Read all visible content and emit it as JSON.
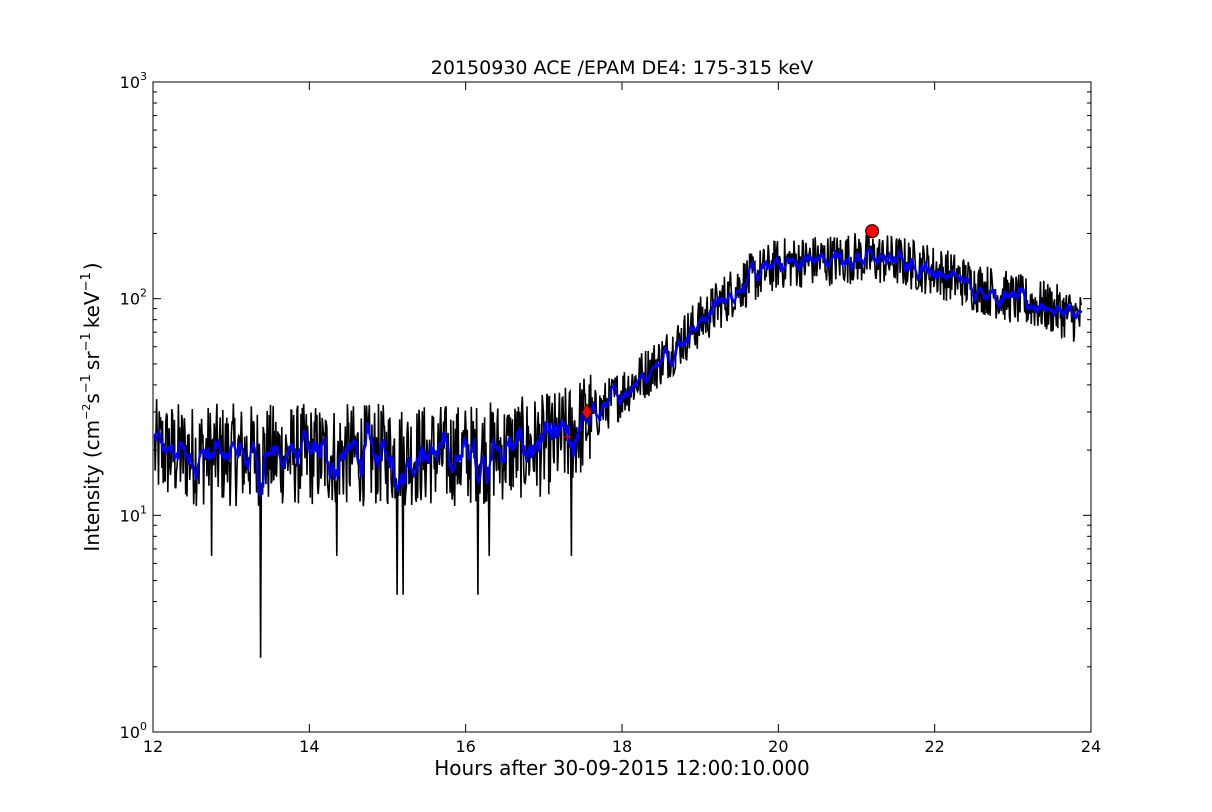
{
  "chart_data": {
    "type": "line",
    "title": "20150930 ACE /EPAM DE4: 175-315 keV",
    "xlabel": "Hours after 30-09-2015 12:00:10.000",
    "ylabel_parts": {
      "prefix": "Intensity (cm",
      "exp1": "−2",
      "s": "s",
      "exp2": "−1",
      "sr": "sr",
      "exp3": "−1",
      "kev": "keV",
      "exp4": "−1",
      "suffix": ")"
    },
    "xlim": [
      12,
      24
    ],
    "ylim": [
      1,
      1000
    ],
    "yscale": "log",
    "grid": false,
    "x_ticks": [
      {
        "value": 12,
        "label": "12"
      },
      {
        "value": 14,
        "label": "14"
      },
      {
        "value": 16,
        "label": "16"
      },
      {
        "value": 18,
        "label": "18"
      },
      {
        "value": 20,
        "label": "20"
      },
      {
        "value": 22,
        "label": "22"
      },
      {
        "value": 24,
        "label": "24"
      }
    ],
    "y_ticks": [
      {
        "value": 1,
        "base": "10",
        "exp": "0"
      },
      {
        "value": 10,
        "base": "10",
        "exp": "1"
      },
      {
        "value": 100,
        "base": "10",
        "exp": "2"
      },
      {
        "value": 1000,
        "base": "10",
        "exp": "3"
      }
    ],
    "series": [
      {
        "color": "#000000",
        "description_points": [
          [
            12.0,
            20
          ],
          [
            12.5,
            19
          ],
          [
            13.0,
            19
          ],
          [
            13.5,
            19
          ],
          [
            14.0,
            19
          ],
          [
            14.5,
            19
          ],
          [
            15.0,
            19
          ],
          [
            15.5,
            19
          ],
          [
            16.0,
            19
          ],
          [
            16.5,
            20
          ],
          [
            17.0,
            21
          ],
          [
            17.3,
            23
          ],
          [
            17.6,
            28
          ],
          [
            18.0,
            37
          ],
          [
            18.5,
            52
          ],
          [
            19.0,
            78
          ],
          [
            19.5,
            115
          ],
          [
            20.0,
            145
          ],
          [
            20.5,
            150
          ],
          [
            21.0,
            155
          ],
          [
            21.5,
            150
          ],
          [
            22.0,
            135
          ],
          [
            22.5,
            115
          ],
          [
            23.0,
            100
          ],
          [
            23.5,
            90
          ],
          [
            23.9,
            80
          ]
        ],
        "dips": [
          [
            13.38,
            2.2
          ],
          [
            15.12,
            4.3
          ],
          [
            15.2,
            4.3
          ],
          [
            16.16,
            4.3
          ],
          [
            12.75,
            6.5
          ],
          [
            14.35,
            6.5
          ],
          [
            16.3,
            6.5
          ],
          [
            17.35,
            6.5
          ]
        ]
      },
      {
        "color": "#0000ff"
      }
    ],
    "markers": [
      {
        "shape": "diamond",
        "x": 17.55,
        "y": 30,
        "color": "#ff0000"
      },
      {
        "shape": "circle",
        "x": 21.2,
        "y": 205,
        "color": "#ff0000"
      },
      {
        "shape": "plus",
        "x": 17.3,
        "y": 23,
        "color": "#ff0000"
      }
    ]
  }
}
